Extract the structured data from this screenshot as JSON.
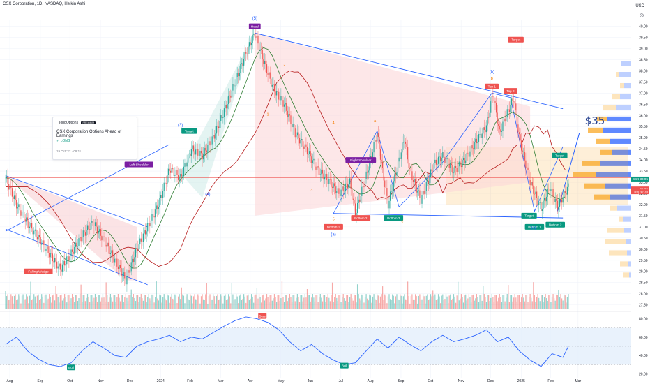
{
  "header": {
    "title": "CSX Corporation, 1D, NASDAQ, Heikin Ashi",
    "currency": "USD"
  },
  "idea_card": {
    "brand": "TopgOptions",
    "badge": "PREMIUM",
    "title": "CSX Corporation Options Ahead of Earnings",
    "side": "LONG",
    "date": "19 Oct '22 · 09:11"
  },
  "colors": {
    "up": "#26a69a",
    "down": "#ef5350",
    "wedge_fill": "#f8c7cb",
    "triangle_fill": "#fbd7d9",
    "trend_line": "#2962ff",
    "rsi_line": "#2962ff",
    "rsi_band": "#e3effb",
    "vp_up": "#2962ff",
    "vp_down": "#f9a825"
  },
  "chart_data": [
    {
      "type": "candlestick",
      "title": "CSX Corporation, 1D, NASDAQ, Heikin Ashi",
      "xlabel": "",
      "ylabel": "",
      "x_ticks": [
        "Aug",
        "Sep",
        "Oct",
        "Nov",
        "Dec",
        "2024",
        "Feb",
        "Mar",
        "Apr",
        "May",
        "Jun",
        "Jul",
        "Aug",
        "Sep",
        "Oct",
        "Nov",
        "Dec",
        "2025",
        "Feb",
        "Mar"
      ],
      "y_ticks": [
        27.5,
        28.0,
        28.5,
        29.0,
        29.5,
        30.0,
        30.5,
        31.0,
        31.5,
        32.0,
        32.5,
        33.0,
        33.5,
        34.0,
        34.5,
        35.0,
        35.5,
        36.0,
        36.5,
        37.0,
        37.5,
        38.0,
        38.5,
        39.0,
        39.5,
        40.0
      ],
      "ylim": [
        27.3,
        40.3
      ],
      "price_path": [
        [
          0,
          33.2
        ],
        [
          10,
          32.0
        ],
        [
          20,
          31.2
        ],
        [
          30,
          30.5
        ],
        [
          40,
          29.8
        ],
        [
          50,
          29.1
        ],
        [
          60,
          29.8
        ],
        [
          70,
          30.6
        ],
        [
          80,
          31.2
        ],
        [
          90,
          30.4
        ],
        [
          100,
          29.5
        ],
        [
          110,
          28.6
        ],
        [
          120,
          30.0
        ],
        [
          130,
          31.0
        ],
        [
          140,
          32.0
        ],
        [
          150,
          33.6
        ],
        [
          160,
          33.2
        ],
        [
          170,
          34.5
        ],
        [
          180,
          34.2
        ],
        [
          190,
          35.0
        ],
        [
          200,
          36.2
        ],
        [
          210,
          37.5
        ],
        [
          220,
          38.8
        ],
        [
          228,
          39.7
        ],
        [
          235,
          38.6
        ],
        [
          245,
          37.2
        ],
        [
          255,
          36.5
        ],
        [
          265,
          35.2
        ],
        [
          275,
          34.5
        ],
        [
          285,
          33.6
        ],
        [
          295,
          33.1
        ],
        [
          305,
          32.5
        ],
        [
          315,
          33.0
        ],
        [
          320,
          31.6
        ],
        [
          330,
          33.3
        ],
        [
          340,
          35.2
        ],
        [
          345,
          33.5
        ],
        [
          350,
          32.0
        ],
        [
          360,
          34.0
        ],
        [
          365,
          35.0
        ],
        [
          370,
          33.5
        ],
        [
          380,
          32.2
        ],
        [
          392,
          33.8
        ],
        [
          400,
          34.2
        ],
        [
          410,
          33.5
        ],
        [
          420,
          34.0
        ],
        [
          430,
          34.8
        ],
        [
          440,
          35.5
        ],
        [
          446,
          37.0
        ],
        [
          452,
          35.2
        ],
        [
          458,
          36.0
        ],
        [
          465,
          36.8
        ],
        [
          470,
          35.0
        ],
        [
          480,
          33.0
        ],
        [
          490,
          31.8
        ],
        [
          498,
          32.8
        ],
        [
          505,
          31.9
        ],
        [
          515,
          32.8
        ]
      ],
      "overlays": [
        {
          "name": "Falling Wedge",
          "type": "label"
        },
        {
          "name": "Left Shoulder",
          "type": "label"
        },
        {
          "name": "Head",
          "type": "label"
        },
        {
          "name": "Right Shoulder",
          "type": "label"
        }
      ],
      "labels": [
        {
          "text": "Falling Wedge",
          "at": [
            30,
            29.0
          ],
          "color": "#ef5350"
        },
        {
          "text": "Left Shoulder",
          "at": [
            122,
            33.8
          ],
          "color": "#7b1fa2"
        },
        {
          "text": "Head",
          "at": [
            228,
            40.0
          ],
          "color": "#7b1fa2"
        },
        {
          "text": "Right Shoulder",
          "at": [
            325,
            34.0
          ],
          "color": "#7b1fa2"
        },
        {
          "text": "Target",
          "at": [
            168,
            35.3
          ],
          "color": "#089981"
        },
        {
          "text": "Target",
          "at": [
            467,
            39.4
          ],
          "color": "#ef5350"
        },
        {
          "text": "Target",
          "at": [
            479,
            31.5
          ],
          "color": "#089981"
        },
        {
          "text": "Target",
          "at": [
            507,
            34.2
          ],
          "color": "#089981"
        },
        {
          "text": "Bottom 1",
          "at": [
            300,
            31.0
          ],
          "color": "#ef5350"
        },
        {
          "text": "Bottom 2",
          "at": [
            325,
            31.4
          ],
          "color": "#ef5350"
        },
        {
          "text": "Bottom 3",
          "at": [
            355,
            31.4
          ],
          "color": "#089981"
        },
        {
          "text": "Top 1",
          "at": [
            445,
            37.3
          ],
          "color": "#ef5350"
        },
        {
          "text": "Top 2",
          "at": [
            462,
            37.1
          ],
          "color": "#ef5350"
        },
        {
          "text": "Bottom 1",
          "at": [
            484,
            31.0
          ],
          "color": "#089981"
        },
        {
          "text": "Bottom 2",
          "at": [
            503,
            31.1
          ],
          "color": "#089981"
        }
      ],
      "wave_labels": [
        "(5)",
        "(3)",
        "(4)",
        "(b)",
        "(a)",
        "(c)",
        "1",
        "2",
        "3",
        "4",
        "5",
        "a",
        "b",
        "c"
      ],
      "annotation": "$35",
      "price_tags": [
        {
          "label": "CSX",
          "value": "33.05",
          "color": "#089981"
        },
        {
          "label": "",
          "value": "32.73",
          "color": "#ef5350"
        },
        {
          "label": "Rej",
          "value": "32.70",
          "color": "#ef5350"
        }
      ]
    },
    {
      "type": "line",
      "title": "",
      "y_ticks": [
        20.0,
        40.0,
        60.0,
        80.0
      ],
      "ylim": [
        15,
        85
      ],
      "band": [
        30,
        70
      ],
      "labels": [
        {
          "text": "Bull",
          "color": "#089981"
        },
        {
          "text": "Bear",
          "color": "#ef5350"
        },
        {
          "text": "Bull",
          "color": "#089981"
        }
      ],
      "series": [
        {
          "values": [
            [
              0,
              52
            ],
            [
              10,
              60
            ],
            [
              20,
              45
            ],
            [
              30,
              36
            ],
            [
              40,
              30
            ],
            [
              50,
              28
            ],
            [
              60,
              32
            ],
            [
              70,
              45
            ],
            [
              80,
              55
            ],
            [
              90,
              48
            ],
            [
              100,
              40
            ],
            [
              110,
              38
            ],
            [
              120,
              50
            ],
            [
              130,
              55
            ],
            [
              140,
              58
            ],
            [
              150,
              62
            ],
            [
              160,
              55
            ],
            [
              170,
              60
            ],
            [
              180,
              58
            ],
            [
              190,
              65
            ],
            [
              200,
              72
            ],
            [
              210,
              78
            ],
            [
              220,
              82
            ],
            [
              230,
              80
            ],
            [
              240,
              76
            ],
            [
              250,
              68
            ],
            [
              260,
              55
            ],
            [
              270,
              45
            ],
            [
              280,
              52
            ],
            [
              290,
              42
            ],
            [
              300,
              35
            ],
            [
              310,
              30
            ],
            [
              320,
              32
            ],
            [
              330,
              45
            ],
            [
              340,
              58
            ],
            [
              350,
              48
            ],
            [
              360,
              60
            ],
            [
              370,
              52
            ],
            [
              380,
              45
            ],
            [
              390,
              55
            ],
            [
              400,
              62
            ],
            [
              410,
              55
            ],
            [
              420,
              58
            ],
            [
              430,
              62
            ],
            [
              440,
              68
            ],
            [
              450,
              55
            ],
            [
              460,
              60
            ],
            [
              470,
              45
            ],
            [
              480,
              35
            ],
            [
              490,
              28
            ],
            [
              500,
              42
            ],
            [
              510,
              38
            ],
            [
              515,
              50
            ]
          ]
        }
      ]
    }
  ]
}
